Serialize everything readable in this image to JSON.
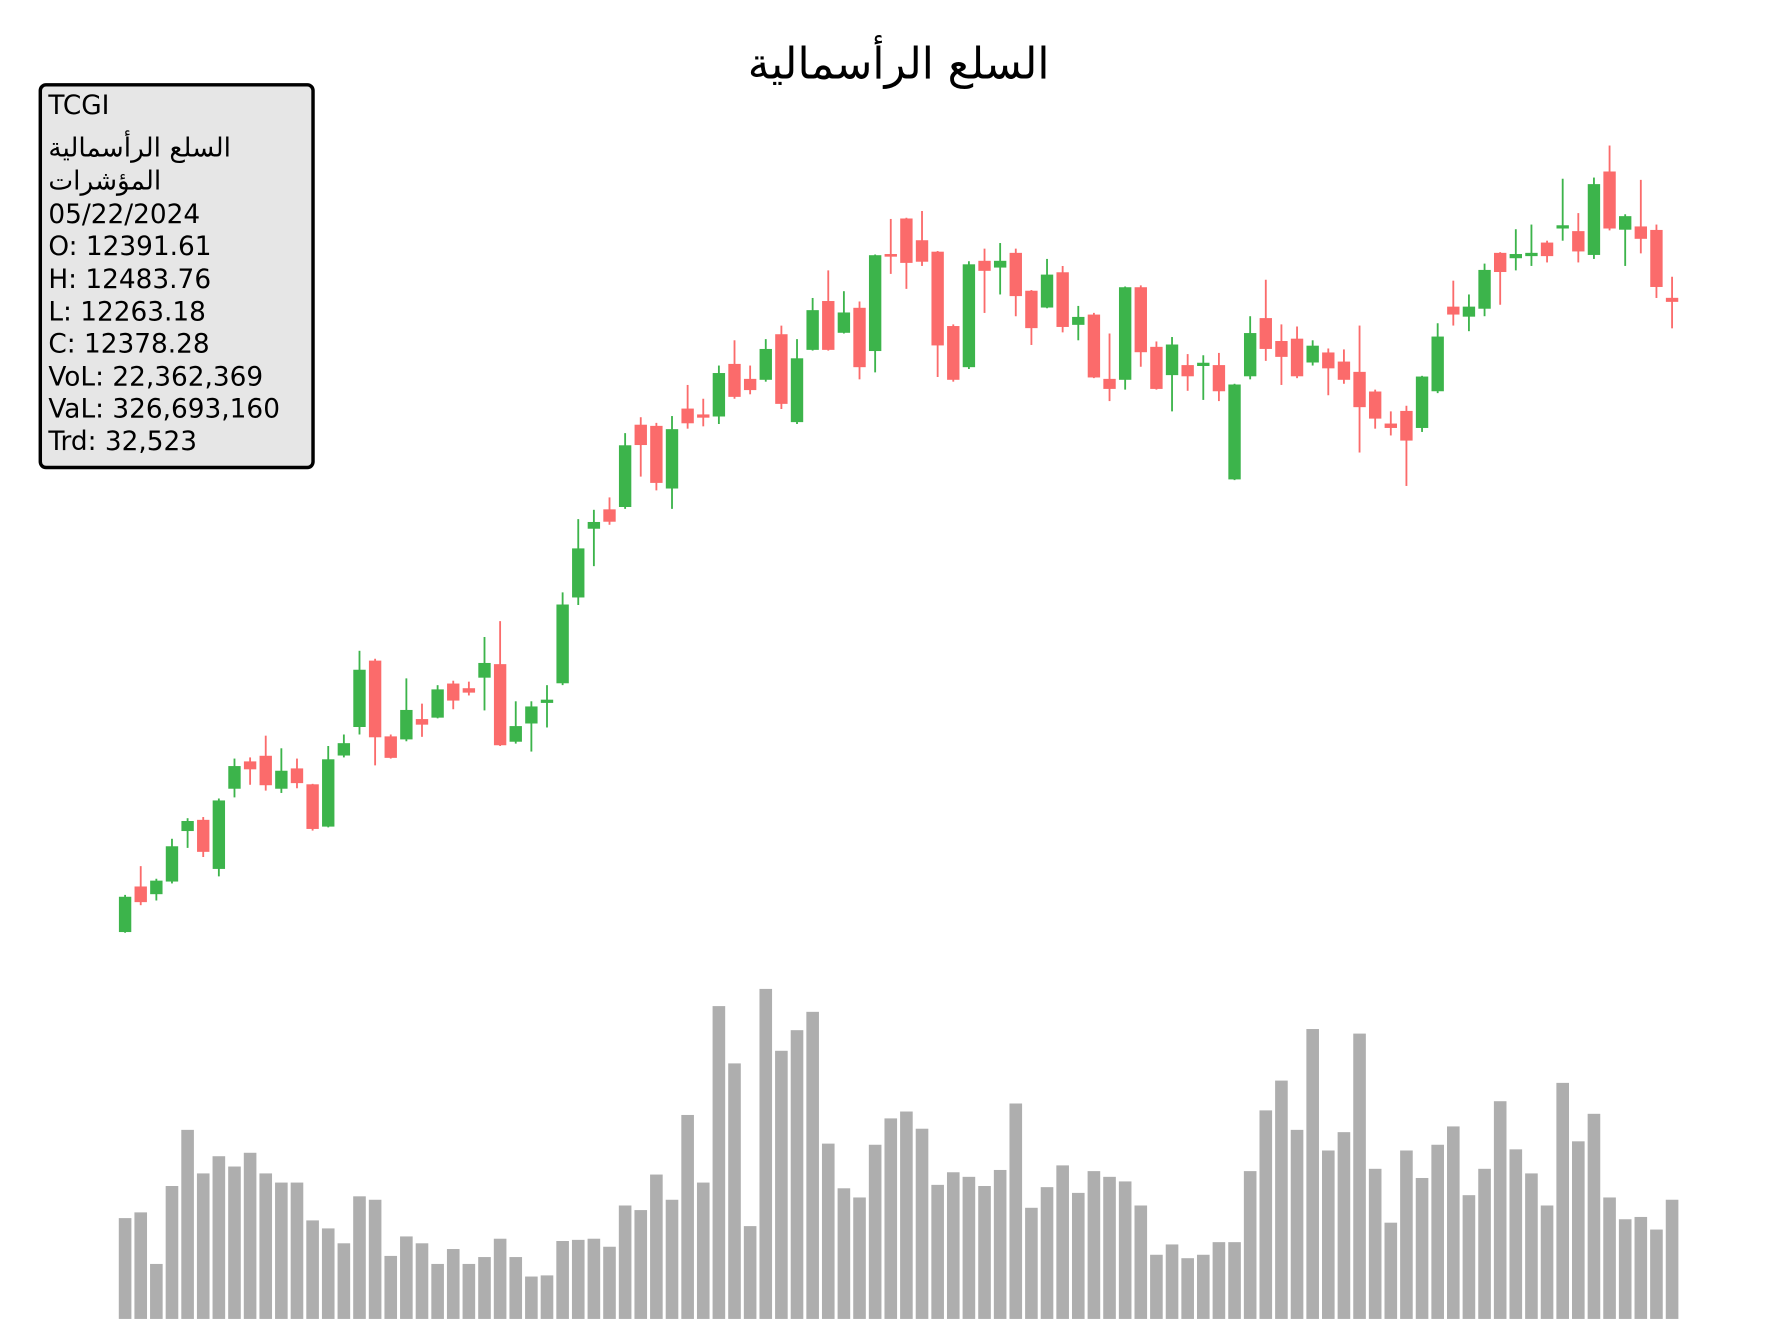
{
  "chart_data": {
    "type": "candlestick",
    "title": "السلع الرأسمالية",
    "info_box": [
      "TCGI",
      "السلع الرأسمالية",
      "المؤشرات",
      "05/22/2024",
      "O: 12391.61",
      "H: 12483.76",
      "L: 12263.18",
      "C: 12378.28",
      "VoL: 22,362,369",
      "VaL: 326,693,160",
      "Trd: 32,523"
    ],
    "up_color": "#3cb44b",
    "down_color": "#fb6b6b",
    "volume_color": "#aeaeae",
    "open": [
      9683,
      9874,
      9845,
      9899,
      10115,
      10159,
      9953,
      10296,
      10409,
      10433,
      10296,
      10379,
      10311,
      10134,
      10438,
      10560,
      10840,
      10516,
      10507,
      10590,
      10600,
      10742,
      10722,
      10771,
      10825,
      10497,
      10575,
      10663,
      10747,
      11114,
      11408,
      11487,
      11501,
      11849,
      11844,
      11580,
      11918,
      11893,
      11888,
      12109,
      12045,
      12045,
      12236,
      11864,
      12173,
      12378,
      12246,
      12349,
      12168,
      12579,
      12731,
      12638,
      12589,
      12271,
      12099,
      12550,
      12525,
      12584,
      12422,
      12354,
      12501,
      12280,
      12320,
      12045,
      12045,
      12437,
      12182,
      12065,
      12104,
      12104,
      12104,
      11619,
      12060,
      12305,
      12207,
      12217,
      12119,
      12158,
      12119,
      12075,
      11991,
      11854,
      11908,
      11839,
      11996,
      12354,
      12315,
      12349,
      12584,
      12565,
      12574,
      12628,
      12692,
      12677,
      12579,
      12932,
      12687,
      12697,
      12682,
      12391.61
    ],
    "high": [
      9840,
      9963,
      9909,
      10080,
      10168,
      10173,
      10252,
      10423,
      10428,
      10521,
      10467,
      10423,
      10315,
      10477,
      10526,
      10884,
      10850,
      10526,
      10766,
      10658,
      10737,
      10756,
      10752,
      10943,
      11011,
      10668,
      10668,
      10737,
      11134,
      11447,
      11487,
      11540,
      11815,
      11883,
      11859,
      11888,
      12021,
      11962,
      12104,
      12212,
      12104,
      12217,
      12275,
      12217,
      12393,
      12511,
      12422,
      12378,
      12579,
      12731,
      12736,
      12765,
      12594,
      12280,
      12550,
      12604,
      12628,
      12604,
      12427,
      12560,
      12530,
      12359,
      12329,
      12241,
      12442,
      12447,
      12207,
      12226,
      12153,
      12148,
      12158,
      12026,
      12315,
      12471,
      12280,
      12271,
      12212,
      12177,
      12173,
      12275,
      12001,
      11908,
      11932,
      12060,
      12285,
      12467,
      12408,
      12540,
      12589,
      12687,
      12707,
      12638,
      12903,
      12756,
      12908,
      13045,
      12751,
      12898,
      12707,
      12483.76
    ],
    "low": [
      9678,
      9796,
      9816,
      9889,
      10041,
      10002,
      9919,
      10257,
      10311,
      10286,
      10276,
      10296,
      10115,
      10129,
      10428,
      10526,
      10394,
      10423,
      10497,
      10516,
      10595,
      10634,
      10693,
      10629,
      10477,
      10487,
      10453,
      10556,
      10737,
      11080,
      11246,
      11423,
      11491,
      11629,
      11570,
      11491,
      11834,
      11844,
      11854,
      11962,
      11981,
      12035,
      11918,
      11854,
      12168,
      12168,
      12241,
      12045,
      12075,
      12496,
      12432,
      12530,
      12055,
      12035,
      12089,
      12329,
      12408,
      12315,
      12192,
      12349,
      12246,
      12212,
      12050,
      11952,
      12001,
      12099,
      12001,
      11908,
      11996,
      11957,
      11952,
      11614,
      12045,
      12124,
      12021,
      12050,
      12104,
      11977,
      12026,
      11732,
      11834,
      11805,
      11589,
      11820,
      11986,
      12275,
      12251,
      12315,
      12364,
      12511,
      12530,
      12545,
      12638,
      12545,
      12560,
      12682,
      12530,
      12584,
      12393,
      12263.18
    ],
    "close": [
      9830,
      9811,
      9899,
      10046,
      10154,
      10026,
      10242,
      10389,
      10379,
      10311,
      10369,
      10320,
      10124,
      10418,
      10487,
      10801,
      10516,
      10428,
      10629,
      10570,
      10717,
      10673,
      10707,
      10830,
      10482,
      10560,
      10644,
      10673,
      11080,
      11320,
      11433,
      11438,
      11761,
      11766,
      11604,
      11830,
      11859,
      11883,
      12070,
      11972,
      12001,
      12173,
      11942,
      12133,
      12339,
      12173,
      12329,
      12099,
      12574,
      12574,
      12545,
      12550,
      12192,
      12045,
      12535,
      12511,
      12550,
      12403,
      12266,
      12491,
      12271,
      12310,
      12055,
      12006,
      12437,
      12163,
      12006,
      12192,
      12060,
      12114,
      11996,
      12021,
      12241,
      12177,
      12143,
      12060,
      12187,
      12094,
      12045,
      11928,
      11879,
      11839,
      11785,
      12055,
      12226,
      12324,
      12354,
      12511,
      12506,
      12579,
      12584,
      12574,
      12702,
      12594,
      12878,
      12692,
      12741,
      12648,
      12442,
      12378.28
    ],
    "volume": [
      18920000,
      19995000,
      10320000,
      24940000,
      35475000,
      27305000,
      30530000,
      28595000,
      31175000,
      27305000,
      25585000,
      25585000,
      18490000,
      16985000,
      14190000,
      23005000,
      22360000,
      11825000,
      15480000,
      14190000,
      10320000,
      13115000,
      10320000,
      11610000,
      15050000,
      11610000,
      7955000,
      8170000,
      14620000,
      14835000,
      15050000,
      13545000,
      21285000,
      20425000,
      27090000,
      22360000,
      38270000,
      25585000,
      58695000,
      47945000,
      17415000,
      61920000,
      50310000,
      54180000,
      57620000,
      32895000,
      24510000,
      22790000,
      32680000,
      37625000,
      38915000,
      35690000,
      25155000,
      27520000,
      26660000,
      24940000,
      27950000,
      40420000,
      20855000,
      24725000,
      28810000,
      23650000,
      27735000,
      26660000,
      25800000,
      21285000,
      12040000,
      13975000,
      11395000,
      12040000,
      14405000,
      14405000,
      27735000,
      39130000,
      44720000,
      35475000,
      54395000,
      31605000,
      35045000,
      53535000,
      28165000,
      18060000,
      31605000,
      26445000,
      32680000,
      36120000,
      23220000,
      28165000,
      40850000,
      31820000,
      27305000,
      21285000,
      44290000,
      33325000,
      38485000,
      22790000,
      18705000,
      19135000,
      16770000,
      22362369
    ]
  }
}
